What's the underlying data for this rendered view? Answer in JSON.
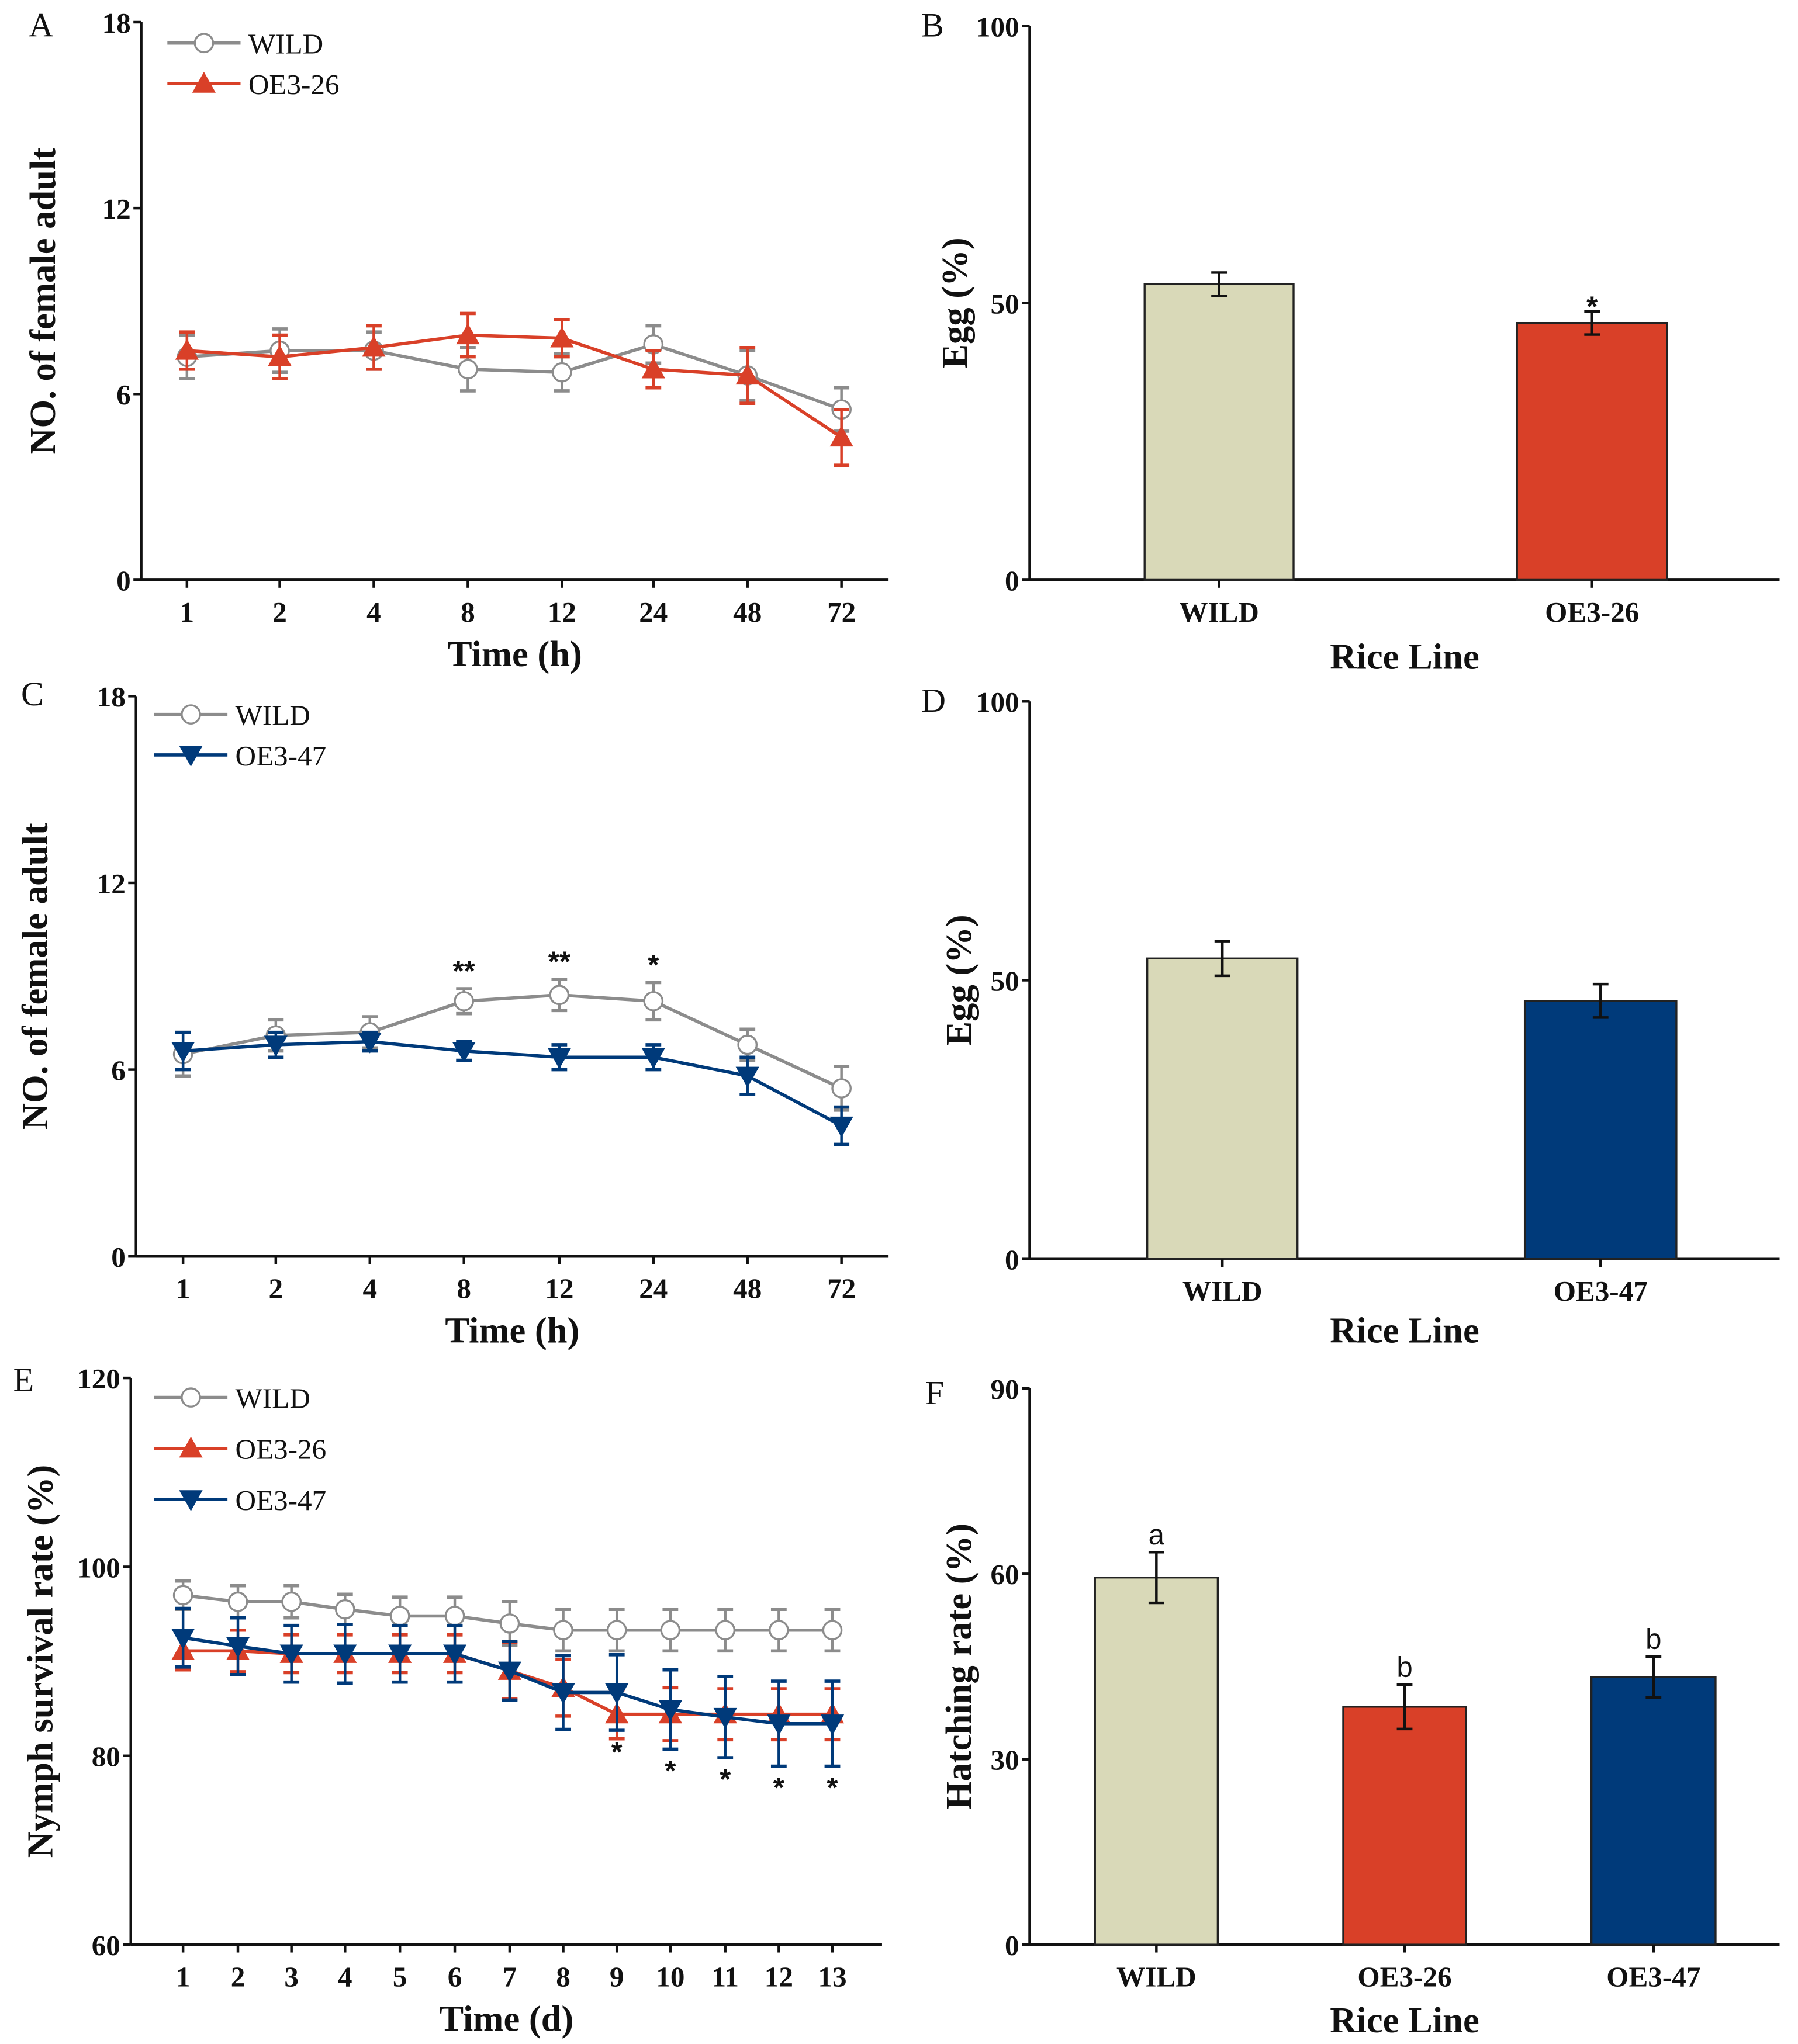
{
  "chart_data": [
    {
      "panel": "A",
      "type": "line",
      "xlabel": "Time (h)",
      "ylabel": "NO. of female adult",
      "categories": [
        "1",
        "2",
        "4",
        "8",
        "12",
        "24",
        "48",
        "72"
      ],
      "yticks": [
        "0",
        "6",
        "12",
        "18"
      ],
      "ylim": [
        0,
        18
      ],
      "legend_position": "top-left",
      "series": [
        {
          "name": "WILD",
          "color": "#8C8C8C",
          "marker": "circle-open",
          "values": [
            7.2,
            7.4,
            7.4,
            6.8,
            6.7,
            7.6,
            6.6,
            5.5
          ],
          "errors": [
            0.7,
            0.7,
            0.6,
            0.7,
            0.6,
            0.6,
            0.8,
            0.7
          ]
        },
        {
          "name": "OE3-26",
          "color": "#D94028",
          "marker": "triangle-up",
          "values": [
            7.4,
            7.2,
            7.5,
            7.9,
            7.8,
            6.8,
            6.6,
            4.6
          ],
          "errors": [
            0.6,
            0.7,
            0.7,
            0.7,
            0.6,
            0.6,
            0.9,
            0.9
          ]
        }
      ],
      "annotations": []
    },
    {
      "panel": "B",
      "type": "bar",
      "xlabel": "Rice Line",
      "ylabel": "Egg (%)",
      "categories": [
        "WILD",
        "OE3-26"
      ],
      "values": [
        53.4,
        46.4
      ],
      "errors": [
        2.1,
        2.1
      ],
      "colors": [
        "#D9D9B8",
        "#D94028"
      ],
      "yticks": [
        "0",
        "50",
        "100"
      ],
      "ylim": [
        0,
        100
      ],
      "annotations": [
        "",
        "*"
      ]
    },
    {
      "panel": "C",
      "type": "line",
      "xlabel": "Time (h)",
      "ylabel": "NO. of female adult",
      "categories": [
        "1",
        "2",
        "4",
        "8",
        "12",
        "24",
        "48",
        "72"
      ],
      "yticks": [
        "0",
        "6",
        "12",
        "18"
      ],
      "ylim": [
        0,
        18
      ],
      "legend_position": "top-left",
      "series": [
        {
          "name": "WILD",
          "color": "#8C8C8C",
          "marker": "circle-open",
          "values": [
            6.5,
            7.1,
            7.2,
            8.2,
            8.4,
            8.2,
            6.8,
            5.4
          ],
          "errors": [
            0.7,
            0.5,
            0.5,
            0.4,
            0.5,
            0.6,
            0.5,
            0.7
          ]
        },
        {
          "name": "OE3-47",
          "color": "#003A7A",
          "marker": "triangle-down",
          "values": [
            6.6,
            6.8,
            6.9,
            6.6,
            6.4,
            6.4,
            5.8,
            4.2
          ],
          "errors": [
            0.6,
            0.4,
            0.3,
            0.3,
            0.4,
            0.4,
            0.6,
            0.6
          ]
        }
      ],
      "annotations": [
        "",
        "",
        "",
        "**",
        "**",
        "*",
        "",
        ""
      ]
    },
    {
      "panel": "D",
      "type": "bar",
      "xlabel": "Rice Line",
      "ylabel": "Egg (%)",
      "categories": [
        "WILD",
        "OE3-47"
      ],
      "values": [
        53.9,
        46.3
      ],
      "errors": [
        3.1,
        3.0
      ],
      "colors": [
        "#D9D9B8",
        "#003A7A"
      ],
      "yticks": [
        "0",
        "50",
        "100"
      ],
      "ylim": [
        0,
        100
      ],
      "annotations": [
        "",
        ""
      ]
    },
    {
      "panel": "E",
      "type": "line",
      "xlabel": "Time (d)",
      "ylabel": "Nymph survival rate (%)",
      "categories": [
        "1",
        "2",
        "3",
        "4",
        "5",
        "6",
        "7",
        "8",
        "9",
        "10",
        "11",
        "12",
        "13"
      ],
      "yticks": [
        "60",
        "80",
        "100",
        "120"
      ],
      "ylim": [
        60,
        120
      ],
      "legend_position": "top-left",
      "series": [
        {
          "name": "WILD",
          "color": "#8C8C8C",
          "marker": "circle-open",
          "values": [
            97.0,
            96.3,
            96.3,
            95.5,
            94.8,
            94.8,
            94.0,
            93.3,
            93.3,
            93.3,
            93.3,
            93.3,
            93.3
          ],
          "errors": [
            1.5,
            1.7,
            1.7,
            1.6,
            2.0,
            2.0,
            2.3,
            2.2,
            2.2,
            2.2,
            2.2,
            2.2,
            2.2
          ]
        },
        {
          "name": "OE3-26",
          "color": "#D94028",
          "marker": "triangle-up",
          "values": [
            91.1,
            91.1,
            90.8,
            90.8,
            90.8,
            90.8,
            89.0,
            87.2,
            84.4,
            84.4,
            84.4,
            84.4,
            84.4
          ],
          "errors": [
            2.0,
            2.2,
            2.0,
            2.0,
            2.0,
            2.0,
            3.0,
            3.0,
            2.6,
            2.8,
            2.7,
            2.7,
            2.7
          ]
        },
        {
          "name": "OE3-47",
          "color": "#003A7A",
          "marker": "triangle-down",
          "values": [
            92.5,
            91.6,
            90.8,
            90.8,
            90.8,
            90.8,
            89.0,
            86.7,
            86.7,
            84.9,
            84.1,
            83.4,
            83.4
          ],
          "errors": [
            3.1,
            3.0,
            3.0,
            3.1,
            3.0,
            3.0,
            3.1,
            3.9,
            4.0,
            4.2,
            4.3,
            4.5,
            4.5
          ]
        }
      ],
      "annotations": [
        "",
        "",
        "",
        "",
        "",
        "",
        "",
        "",
        "*",
        "*",
        "*",
        "*",
        "*"
      ]
    },
    {
      "panel": "F",
      "type": "bar",
      "xlabel": "Rice Line",
      "ylabel": "Hatching rate (%)",
      "categories": [
        "WILD",
        "OE3-26",
        "OE3-47"
      ],
      "values": [
        59.4,
        38.5,
        43.3
      ],
      "errors": [
        4.1,
        3.6,
        3.3
      ],
      "colors": [
        "#D9D9B8",
        "#D94028",
        "#003A7A"
      ],
      "yticks": [
        "0",
        "30",
        "60",
        "90"
      ],
      "ylim": [
        0,
        90
      ],
      "annotations": [
        "a",
        "b",
        "b"
      ]
    }
  ]
}
